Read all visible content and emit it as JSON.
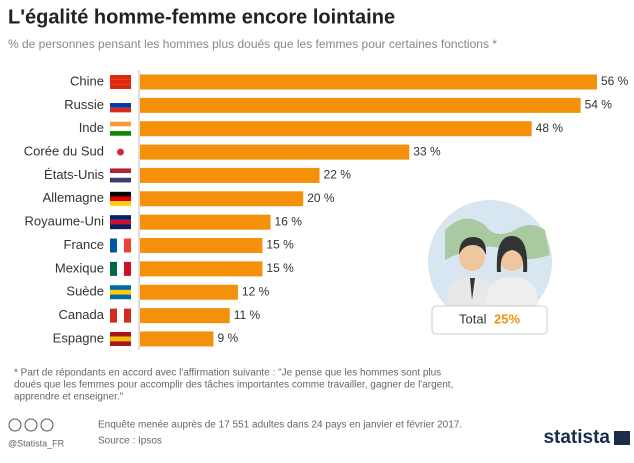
{
  "chart_data": {
    "type": "bar",
    "orientation": "horizontal",
    "title": "L'égalité homme-femme encore lointaine",
    "subtitle": "% de personnes pensant les hommes plus doués que les femmes pour certaines fonctions *",
    "categories": [
      "Chine",
      "Russie",
      "Inde",
      "Corée du Sud",
      "États-Unis",
      "Allemagne",
      "Royaume-Uni",
      "France",
      "Mexique",
      "Suède",
      "Canada",
      "Espagne"
    ],
    "values": [
      56,
      54,
      48,
      33,
      22,
      20,
      16,
      15,
      15,
      12,
      11,
      9
    ],
    "value_labels": [
      "56 %",
      "54 %",
      "48 %",
      "33 %",
      "22 %",
      "20 %",
      "16 %",
      "15 %",
      "15 %",
      "12 %",
      "11 %",
      "9 %"
    ],
    "color": "#f5900a",
    "total_label": "Total",
    "total_value": "25%",
    "footnote": [
      "* Part de répondants en accord avec l'affirmation suivante : \"Je pense que les hommes sont plus",
      "doués que les femmes pour accomplir des tâches importantes comme travailler, gagner de l'argent,",
      "apprendre et enseigner.\""
    ],
    "survey_note": "Enquête menée auprès de 17 551 adultes dans 24 pays en janvier et février 2017.",
    "source": "Source : Ipsos",
    "handle": "@Statista_FR",
    "brand": "statista"
  }
}
